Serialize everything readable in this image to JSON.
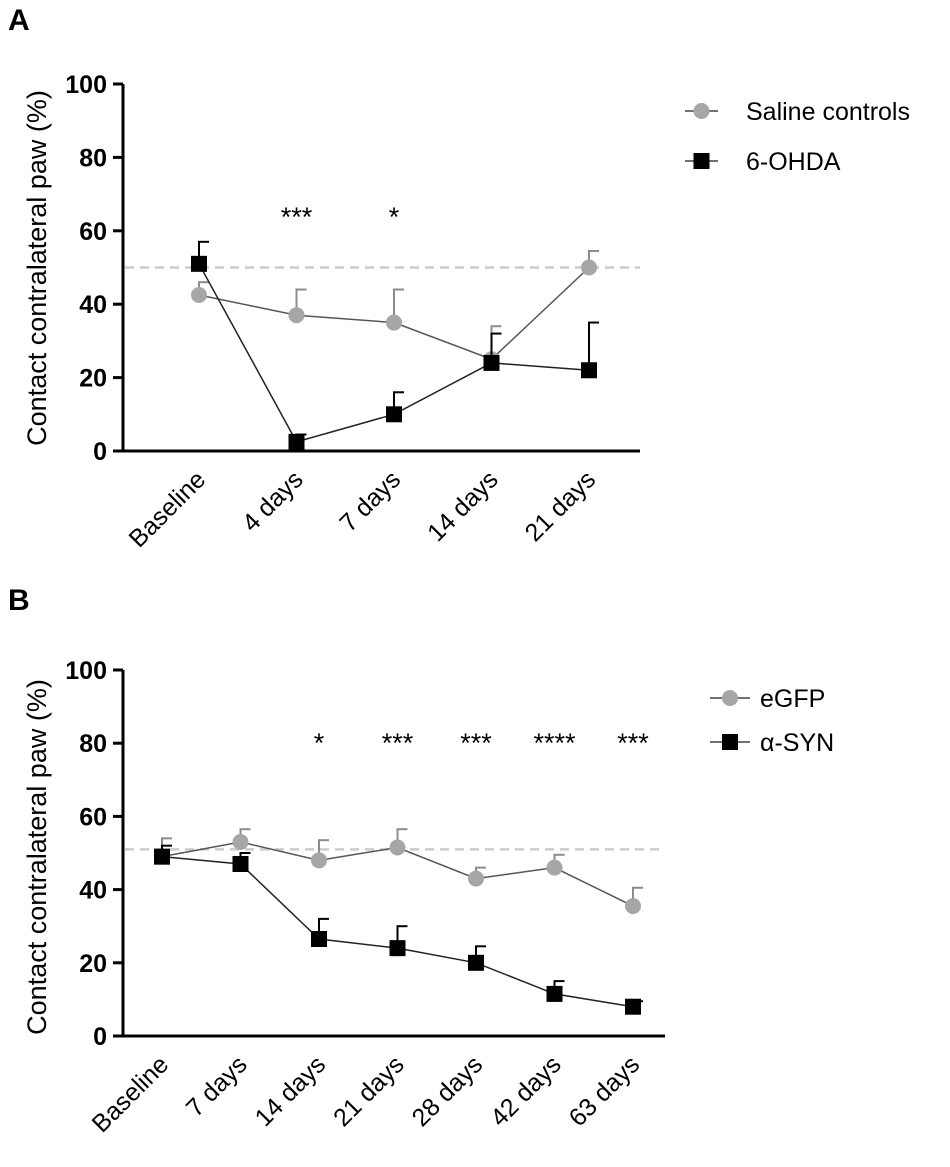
{
  "chart_data": [
    {
      "type": "line",
      "panel": "A",
      "ylabel": "Contact contralateral paw (%)",
      "ylim": [
        0,
        100
      ],
      "yticks": [
        0,
        20,
        40,
        60,
        80,
        100
      ],
      "categories": [
        "Baseline",
        "4 days",
        "7 days",
        "14 days",
        "21 days"
      ],
      "reference_line": 50,
      "significance": [
        {
          "category": "4 days",
          "label": "***"
        },
        {
          "category": "7 days",
          "label": "*"
        }
      ],
      "series": [
        {
          "name": "Saline controls",
          "marker": "circle",
          "color": "#a6a6a6",
          "values": [
            42.5,
            37,
            35,
            25,
            50
          ],
          "errors": [
            3.5,
            7,
            9,
            9,
            4.5
          ]
        },
        {
          "name": "6-OHDA",
          "marker": "square",
          "color": "#000000",
          "values": [
            51,
            2.5,
            10,
            24,
            22
          ],
          "errors": [
            6,
            2,
            6,
            8,
            13
          ]
        }
      ]
    },
    {
      "type": "line",
      "panel": "B",
      "ylabel": "Contact contralateral paw (%)",
      "ylim": [
        0,
        100
      ],
      "yticks": [
        0,
        20,
        40,
        60,
        80,
        100
      ],
      "categories": [
        "Baseline",
        "7 days",
        "14 days",
        "21 days",
        "28 days",
        "42 days",
        "63 days"
      ],
      "reference_line": 51,
      "significance": [
        {
          "category": "14 days",
          "label": "*"
        },
        {
          "category": "21 days",
          "label": "***"
        },
        {
          "category": "28 days",
          "label": "***"
        },
        {
          "category": "42 days",
          "label": "****"
        },
        {
          "category": "63 days",
          "label": "***"
        }
      ],
      "series": [
        {
          "name": "eGFP",
          "marker": "circle",
          "color": "#a6a6a6",
          "values": [
            49,
            53,
            48,
            51.5,
            43,
            46,
            35.5
          ],
          "errors": [
            5,
            3.5,
            5.5,
            5,
            3,
            3.5,
            5
          ]
        },
        {
          "name": "α-SYN",
          "marker": "square",
          "color": "#000000",
          "values": [
            49,
            47,
            26.5,
            24,
            20,
            11.5,
            8
          ],
          "errors": [
            3,
            3,
            5.5,
            6,
            4.5,
            3.5,
            1.5
          ]
        }
      ]
    }
  ]
}
